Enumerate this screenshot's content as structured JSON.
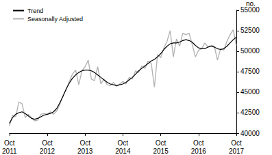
{
  "chart_data": {
    "type": "line",
    "y_label": "no.",
    "categories": [
      "Oct 2011",
      null,
      null,
      null,
      null,
      null,
      null,
      null,
      null,
      null,
      null,
      null,
      "Oct 2012",
      null,
      null,
      null,
      null,
      null,
      null,
      null,
      null,
      null,
      null,
      null,
      "Oct 2013",
      null,
      null,
      null,
      null,
      null,
      null,
      null,
      null,
      null,
      null,
      null,
      "Oct 2014",
      null,
      null,
      null,
      null,
      null,
      null,
      null,
      null,
      null,
      null,
      null,
      "Oct 2015",
      null,
      null,
      null,
      null,
      null,
      null,
      null,
      null,
      null,
      null,
      null,
      "Oct 2016",
      null,
      null,
      null,
      null,
      null,
      null,
      null,
      null,
      null,
      null,
      null,
      "Oct 2017"
    ],
    "series": [
      {
        "name": "Trend",
        "color": "#000000",
        "values": [
          41200,
          41900,
          42300,
          42500,
          42600,
          42400,
          42100,
          41800,
          41700,
          41800,
          42000,
          42200,
          42300,
          42400,
          42600,
          43000,
          43700,
          44500,
          45400,
          46100,
          46700,
          47100,
          47400,
          47600,
          47700,
          47700,
          47600,
          47400,
          47100,
          46800,
          46500,
          46200,
          46000,
          45900,
          45800,
          45900,
          46000,
          46200,
          46500,
          46800,
          47200,
          47600,
          47900,
          48200,
          48500,
          48800,
          49000,
          49300,
          49700,
          50200,
          50600,
          50900,
          51000,
          51000,
          51100,
          51300,
          51400,
          51300,
          51100,
          50700,
          50400,
          50300,
          50300,
          50500,
          50600,
          50500,
          50300,
          50200,
          50300,
          50600,
          51000,
          51400,
          51700
        ]
      },
      {
        "name": "Seasonally Adjusted",
        "color": "#b4b4b4",
        "values": [
          40900,
          42200,
          42000,
          43800,
          43600,
          41900,
          42300,
          41900,
          41500,
          41600,
          42300,
          42400,
          42300,
          42600,
          42300,
          42700,
          43500,
          44600,
          45300,
          46300,
          47200,
          47700,
          45900,
          47600,
          48100,
          48900,
          46600,
          46400,
          48100,
          46000,
          46600,
          45900,
          45800,
          46200,
          45700,
          46000,
          46300,
          46000,
          46800,
          46600,
          47600,
          47400,
          48200,
          47900,
          48800,
          48500,
          45600,
          49600,
          49200,
          50400,
          51200,
          52500,
          49300,
          51500,
          50600,
          52200,
          52000,
          52200,
          50800,
          49300,
          50100,
          50300,
          51000,
          50500,
          50700,
          50600,
          48900,
          50300,
          50100,
          51200,
          52000,
          52600,
          50700
        ]
      }
    ],
    "ylim": [
      40000,
      55000
    ],
    "yticks": [
      40000,
      42500,
      45000,
      47500,
      50000,
      52500,
      55000
    ],
    "grid": false,
    "legend": "top-left"
  }
}
